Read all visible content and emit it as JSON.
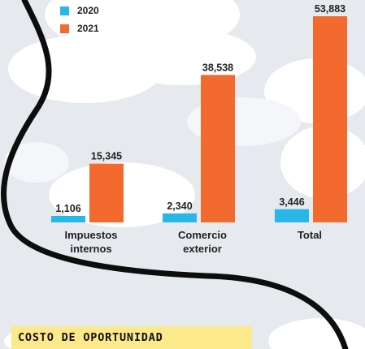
{
  "chart_data": {
    "type": "bar",
    "categories": [
      "Impuestos\ninternos",
      "Comercio\nexterior",
      "Total"
    ],
    "series": [
      {
        "name": "2020",
        "color": "#29b6e8",
        "values": [
          1106,
          2340,
          3446
        ]
      },
      {
        "name": "2021",
        "color": "#f26a2e",
        "values": [
          15345,
          38538,
          53883
        ]
      }
    ],
    "value_labels": [
      [
        "1,106",
        "2,340",
        "3,446"
      ],
      [
        "15,345",
        "38,538",
        "53,883"
      ]
    ],
    "ylim": [
      0,
      53883
    ],
    "grid": false,
    "legend_position": "top-left"
  },
  "legend": {
    "items": [
      {
        "label": "2020",
        "color": "#29b6e8"
      },
      {
        "label": "2021",
        "color": "#f26a2e"
      }
    ]
  },
  "footer": {
    "text": "COSTO DE OPORTUNIDAD"
  }
}
